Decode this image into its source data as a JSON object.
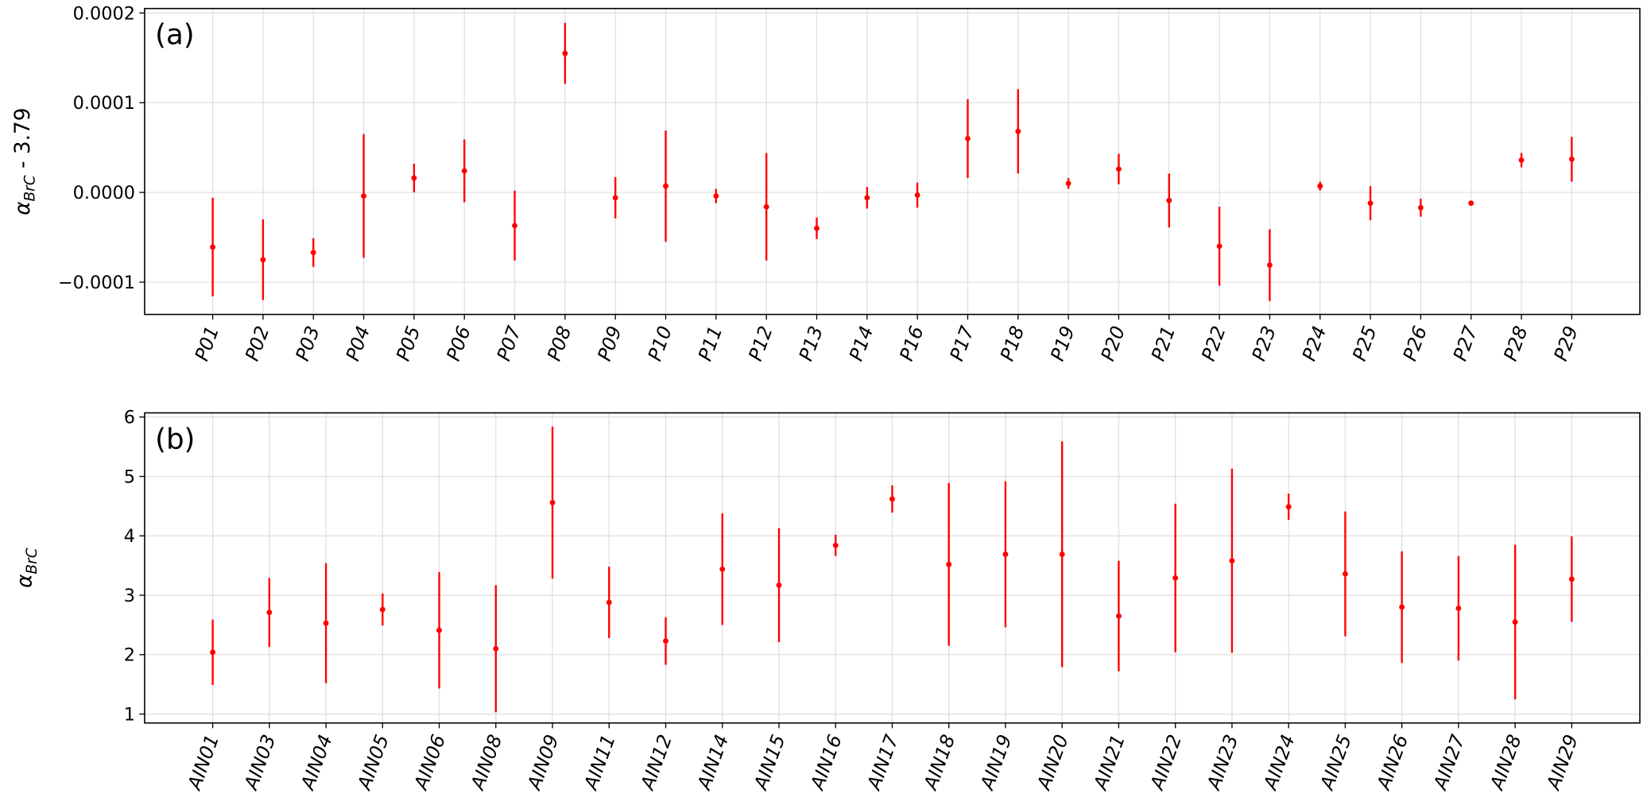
{
  "colors": {
    "marker": "#ff0000",
    "grid": "#e0e0e0",
    "axis": "#000000"
  },
  "chart_data": [
    {
      "type": "scatter",
      "panel_label": "(a)",
      "ylabel_main": "α",
      "ylabel_sub": "BrC",
      "ylabel_suffix": " - 3.79",
      "ylim": [
        -0.000136,
        0.000205
      ],
      "yticks": [
        -0.0001,
        0.0,
        0.0001,
        0.0002
      ],
      "ytick_labels": [
        "−0.0001",
        "0.0000",
        "0.0001",
        "0.0002"
      ],
      "grid": true,
      "error_bars": true,
      "categories": [
        "P01",
        "P02",
        "P03",
        "P04",
        "P05",
        "P06",
        "P07",
        "P08",
        "P09",
        "P10",
        "P11",
        "P12",
        "P13",
        "P14",
        "P16",
        "P17",
        "P18",
        "P19",
        "P20",
        "P21",
        "P22",
        "P23",
        "P24",
        "P25",
        "P26",
        "P27",
        "P28",
        "P29"
      ],
      "values": [
        -6.1e-05,
        -7.5e-05,
        -6.7e-05,
        -4e-06,
        1.6e-05,
        2.4e-05,
        -3.7e-05,
        0.000155,
        -6e-06,
        7e-06,
        -4e-06,
        -1.6e-05,
        -4e-05,
        -6e-06,
        -3e-06,
        6e-05,
        6.8e-05,
        1e-05,
        2.6e-05,
        -9e-06,
        -6e-05,
        -8.1e-05,
        7e-06,
        -1.2e-05,
        -1.7e-05,
        -1.2e-05,
        3.6e-05,
        3.7e-05
      ],
      "errors": [
        5.5e-05,
        4.5e-05,
        1.6e-05,
        6.9e-05,
        1.6e-05,
        3.5e-05,
        3.9e-05,
        3.4e-05,
        2.3e-05,
        6.2e-05,
        8e-06,
        6e-05,
        1.2e-05,
        1.2e-05,
        1.4e-05,
        4.4e-05,
        4.7e-05,
        6e-06,
        1.7e-05,
        3e-05,
        4.4e-05,
        4e-05,
        5e-06,
        1.9e-05,
        1e-05,
        1e-06,
        8e-06,
        2.5e-05
      ]
    },
    {
      "type": "scatter",
      "panel_label": "(b)",
      "ylabel_main": "α",
      "ylabel_sub": "BrC",
      "ylabel_suffix": "",
      "ylim": [
        0.85,
        6.07
      ],
      "yticks": [
        1,
        2,
        3,
        4,
        5,
        6
      ],
      "ytick_labels": [
        "1",
        "2",
        "3",
        "4",
        "5",
        "6"
      ],
      "grid": true,
      "error_bars": true,
      "categories": [
        "AIN01",
        "AIN03",
        "AIN04",
        "AIN05",
        "AIN06",
        "AIN08",
        "AIN09",
        "AIN11",
        "AIN12",
        "AIN14",
        "AIN15",
        "AIN16",
        "AIN17",
        "AIN18",
        "AIN19",
        "AIN20",
        "AIN21",
        "AIN22",
        "AIN23",
        "AIN24",
        "AIN25",
        "AIN26",
        "AIN27",
        "AIN28",
        "AIN29"
      ],
      "values": [
        2.04,
        2.71,
        2.53,
        2.76,
        2.41,
        2.1,
        4.56,
        2.88,
        2.23,
        3.44,
        3.17,
        3.84,
        4.62,
        3.52,
        3.69,
        3.69,
        2.65,
        3.29,
        3.58,
        4.49,
        3.36,
        2.8,
        2.78,
        2.55,
        3.27
      ],
      "errors": [
        0.55,
        0.58,
        1.01,
        0.27,
        0.98,
        1.07,
        1.28,
        0.6,
        0.4,
        0.94,
        0.96,
        0.18,
        0.23,
        1.37,
        1.23,
        1.9,
        0.93,
        1.25,
        1.55,
        0.22,
        1.05,
        0.94,
        0.88,
        1.3,
        0.72
      ]
    }
  ]
}
